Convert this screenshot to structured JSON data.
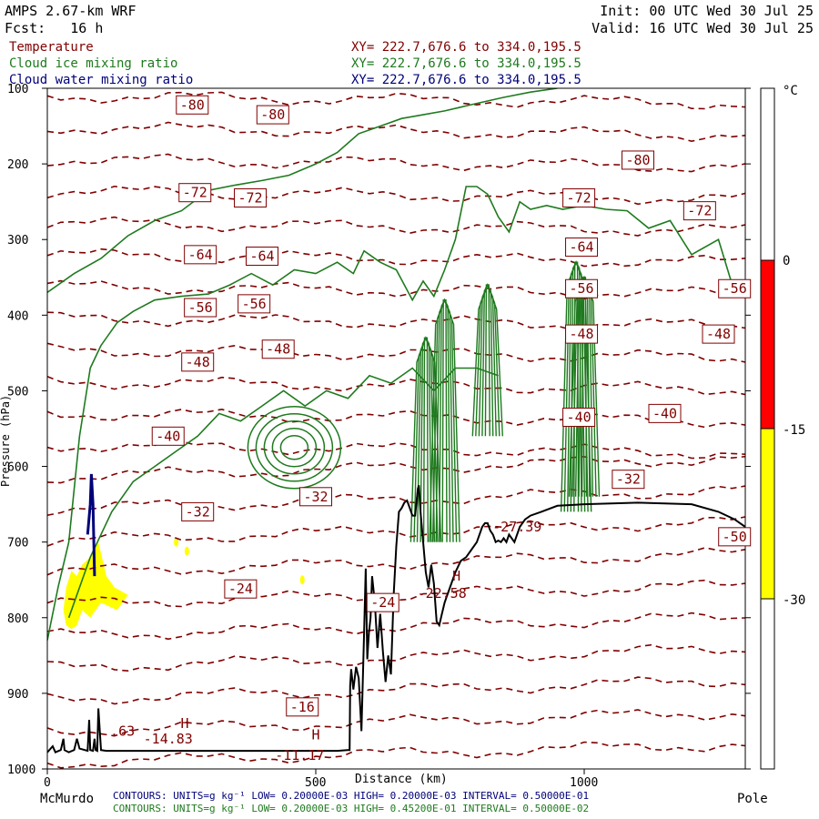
{
  "header": {
    "model": "AMPS 2.67-km WRF",
    "init": "Init: 00 UTC Wed 30 Jul 25",
    "fcst": "Fcst:   16 h",
    "valid": "Valid: 16 UTC Wed 30 Jul 25"
  },
  "fields": [
    {
      "name": "Temperature",
      "xy": "XY= 222.7,676.6 to 334.0,195.5",
      "color": "#800000"
    },
    {
      "name": "Cloud ice mixing ratio",
      "xy": "XY= 222.7,676.6 to 334.0,195.5",
      "color": "#1e7a1e"
    },
    {
      "name": "Cloud water mixing ratio",
      "xy": "XY= 222.7,676.6 to 334.0,195.5",
      "color": "#00007a"
    }
  ],
  "footer": {
    "left_location": "McMurdo",
    "right_location": "Pole",
    "contour_water": "CONTOURS:  UNITS=g kg⁻¹  LOW= 0.20000E-03  HIGH= 0.20000E-03  INTERVAL=  0.50000E-01",
    "contour_ice": "CONTOURS:  UNITS=g kg⁻¹  LOW= 0.20000E-03  HIGH= 0.45200E-01  INTERVAL=  0.50000E-02"
  },
  "colorbar": {
    "unit": "°C",
    "labels": [
      "0",
      "-15",
      "-30"
    ],
    "colors": {
      "above0": "#ffffff",
      "0_to_-15": "#ff0000",
      "-15_to_-30": "#ffff00",
      "below-30": "#ffffff"
    }
  },
  "chart_data": {
    "type": "contour cross-section",
    "xlabel": "Distance (km)",
    "ylabel": "Pressure (hPa)",
    "x_ticks": [
      0,
      500,
      1000
    ],
    "y_ticks": [
      100,
      200,
      300,
      400,
      500,
      600,
      700,
      800,
      900,
      1000
    ],
    "xlim": [
      0,
      1300
    ],
    "ylim": [
      1000,
      100
    ],
    "temperature_labels": [
      {
        "text": "-80",
        "x": 270,
        "p": 122
      },
      {
        "text": "-80",
        "x": 420,
        "p": 135
      },
      {
        "text": "-80",
        "x": 1100,
        "p": 195
      },
      {
        "text": "-72",
        "x": 275,
        "p": 238
      },
      {
        "text": "-72",
        "x": 378,
        "p": 245
      },
      {
        "text": "-72",
        "x": 990,
        "p": 245
      },
      {
        "text": "-72",
        "x": 1215,
        "p": 262
      },
      {
        "text": "-64",
        "x": 285,
        "p": 320
      },
      {
        "text": "-64",
        "x": 400,
        "p": 322
      },
      {
        "text": "-64",
        "x": 995,
        "p": 310
      },
      {
        "text": "-56",
        "x": 285,
        "p": 390
      },
      {
        "text": "-56",
        "x": 385,
        "p": 385
      },
      {
        "text": "-56",
        "x": 995,
        "p": 365
      },
      {
        "text": "-56",
        "x": 1280,
        "p": 365
      },
      {
        "text": "-48",
        "x": 280,
        "p": 462
      },
      {
        "text": "-48",
        "x": 430,
        "p": 445
      },
      {
        "text": "-48",
        "x": 995,
        "p": 425
      },
      {
        "text": "-48",
        "x": 1250,
        "p": 425
      },
      {
        "text": "-40",
        "x": 225,
        "p": 560
      },
      {
        "text": "-40",
        "x": 990,
        "p": 535
      },
      {
        "text": "-40",
        "x": 1150,
        "p": 530
      },
      {
        "text": "-32",
        "x": 280,
        "p": 660
      },
      {
        "text": "-32",
        "x": 500,
        "p": 640
      },
      {
        "text": "-32",
        "x": 1082,
        "p": 617
      },
      {
        "text": "-24",
        "x": 360,
        "p": 762
      },
      {
        "text": "-24",
        "x": 625,
        "p": 780
      },
      {
        "text": "-16",
        "x": 475,
        "p": 918
      },
      {
        "text": "-27.39",
        "x": 875,
        "p": 680
      },
      {
        "text": "-22.58",
        "x": 735,
        "p": 768
      },
      {
        "text": "-14.83",
        "x": 225,
        "p": 960
      },
      {
        "text": "-11.17",
        "x": 470,
        "p": 982
      },
      {
        "text": ".63",
        "x": 140,
        "p": 950
      },
      {
        "text": "-50",
        "x": 1280,
        "p": 693
      }
    ],
    "highs": [
      {
        "text": "H",
        "x": 762,
        "p": 745
      },
      {
        "text": "H",
        "x": 256,
        "p": 940
      },
      {
        "text": "H",
        "x": 500,
        "p": 955
      }
    ],
    "terrain": [
      [
        0,
        978
      ],
      [
        10,
        970
      ],
      [
        15,
        978
      ],
      [
        25,
        975
      ],
      [
        30,
        960
      ],
      [
        32,
        975
      ],
      [
        40,
        978
      ],
      [
        50,
        975
      ],
      [
        55,
        960
      ],
      [
        60,
        973
      ],
      [
        75,
        976
      ],
      [
        78,
        935
      ],
      [
        80,
        975
      ],
      [
        85,
        976
      ],
      [
        88,
        960
      ],
      [
        90,
        975
      ],
      [
        93,
        976
      ],
      [
        95,
        920
      ],
      [
        100,
        975
      ],
      [
        110,
        976
      ],
      [
        300,
        976
      ],
      [
        500,
        976
      ],
      [
        540,
        976
      ],
      [
        560,
        975
      ],
      [
        563,
        975
      ],
      [
        564,
        890
      ],
      [
        566,
        868
      ],
      [
        570,
        895
      ],
      [
        575,
        865
      ],
      [
        580,
        880
      ],
      [
        585,
        950
      ],
      [
        590,
        820
      ],
      [
        593,
        735
      ],
      [
        596,
        855
      ],
      [
        599,
        820
      ],
      [
        602,
        800
      ],
      [
        605,
        745
      ],
      [
        610,
        780
      ],
      [
        615,
        840
      ],
      [
        620,
        795
      ],
      [
        625,
        845
      ],
      [
        630,
        885
      ],
      [
        635,
        850
      ],
      [
        640,
        875
      ],
      [
        645,
        770
      ],
      [
        650,
        705
      ],
      [
        655,
        660
      ],
      [
        660,
        655
      ],
      [
        665,
        648
      ],
      [
        670,
        645
      ],
      [
        675,
        655
      ],
      [
        680,
        665
      ],
      [
        685,
        665
      ],
      [
        690,
        630
      ],
      [
        692,
        625
      ],
      [
        695,
        660
      ],
      [
        700,
        700
      ],
      [
        705,
        740
      ],
      [
        710,
        760
      ],
      [
        715,
        730
      ],
      [
        720,
        755
      ],
      [
        725,
        805
      ],
      [
        730,
        810
      ],
      [
        735,
        795
      ],
      [
        740,
        780
      ],
      [
        745,
        770
      ],
      [
        750,
        760
      ],
      [
        760,
        740
      ],
      [
        770,
        725
      ],
      [
        780,
        720
      ],
      [
        790,
        710
      ],
      [
        800,
        700
      ],
      [
        810,
        680
      ],
      [
        815,
        675
      ],
      [
        820,
        675
      ],
      [
        825,
        685
      ],
      [
        830,
        690
      ],
      [
        835,
        700
      ],
      [
        840,
        698
      ],
      [
        845,
        700
      ],
      [
        850,
        695
      ],
      [
        855,
        700
      ],
      [
        860,
        690
      ],
      [
        870,
        700
      ],
      [
        880,
        680
      ],
      [
        890,
        670
      ],
      [
        900,
        665
      ],
      [
        920,
        660
      ],
      [
        950,
        652
      ],
      [
        1000,
        650
      ],
      [
        1100,
        648
      ],
      [
        1200,
        650
      ],
      [
        1250,
        660
      ],
      [
        1280,
        670
      ],
      [
        1300,
        680
      ]
    ],
    "ice_boundary": [
      [
        0,
        370
      ],
      [
        50,
        345
      ],
      [
        100,
        325
      ],
      [
        150,
        295
      ],
      [
        200,
        275
      ],
      [
        250,
        262
      ],
      [
        300,
        235
      ],
      [
        350,
        228
      ],
      [
        400,
        222
      ],
      [
        450,
        215
      ],
      [
        500,
        200
      ],
      [
        540,
        185
      ],
      [
        580,
        160
      ],
      [
        620,
        150
      ],
      [
        660,
        140
      ],
      [
        700,
        135
      ],
      [
        740,
        130
      ],
      [
        800,
        120
      ],
      [
        850,
        112
      ],
      [
        900,
        105
      ],
      [
        950,
        100
      ]
    ],
    "ice_outer": [
      [
        0,
        830
      ],
      [
        20,
        760
      ],
      [
        40,
        700
      ],
      [
        60,
        560
      ],
      [
        80,
        470
      ],
      [
        100,
        440
      ],
      [
        130,
        410
      ],
      [
        160,
        395
      ],
      [
        200,
        380
      ],
      [
        250,
        375
      ],
      [
        300,
        372
      ],
      [
        340,
        360
      ],
      [
        380,
        345
      ],
      [
        420,
        360
      ],
      [
        460,
        340
      ],
      [
        500,
        345
      ],
      [
        540,
        330
      ],
      [
        570,
        345
      ],
      [
        590,
        315
      ],
      [
        620,
        330
      ],
      [
        650,
        340
      ],
      [
        680,
        380
      ],
      [
        700,
        355
      ],
      [
        720,
        375
      ],
      [
        740,
        340
      ],
      [
        760,
        300
      ],
      [
        780,
        230
      ],
      [
        800,
        230
      ],
      [
        820,
        240
      ],
      [
        840,
        270
      ],
      [
        860,
        290
      ],
      [
        880,
        250
      ],
      [
        900,
        260
      ],
      [
        930,
        255
      ],
      [
        960,
        260
      ],
      [
        1000,
        255
      ],
      [
        1040,
        260
      ],
      [
        1080,
        262
      ],
      [
        1120,
        285
      ],
      [
        1160,
        275
      ],
      [
        1200,
        320
      ],
      [
        1250,
        300
      ],
      [
        1280,
        370
      ],
      [
        1300,
        360
      ]
    ],
    "ice_inner": [
      [
        40,
        800
      ],
      [
        80,
        720
      ],
      [
        120,
        660
      ],
      [
        160,
        620
      ],
      [
        200,
        600
      ],
      [
        240,
        580
      ],
      [
        280,
        560
      ],
      [
        320,
        530
      ],
      [
        360,
        540
      ],
      [
        400,
        520
      ],
      [
        440,
        500
      ],
      [
        480,
        520
      ],
      [
        520,
        500
      ],
      [
        560,
        510
      ],
      [
        600,
        480
      ],
      [
        640,
        490
      ],
      [
        680,
        470
      ],
      [
        720,
        500
      ],
      [
        760,
        470
      ],
      [
        800,
        470
      ],
      [
        840,
        480
      ]
    ],
    "water_streak": [
      [
        75,
        690
      ],
      [
        80,
        650
      ],
      [
        82,
        610
      ],
      [
        85,
        650
      ],
      [
        88,
        745
      ]
    ],
    "yellow_patch": [
      [
        30,
        790
      ],
      [
        35,
        760
      ],
      [
        45,
        738
      ],
      [
        55,
        745
      ],
      [
        65,
        730
      ],
      [
        80,
        720
      ],
      [
        95,
        700
      ],
      [
        110,
        745
      ],
      [
        125,
        760
      ],
      [
        150,
        770
      ],
      [
        160,
        760
      ],
      [
        130,
        790
      ],
      [
        100,
        780
      ],
      [
        80,
        800
      ],
      [
        65,
        790
      ],
      [
        55,
        810
      ],
      [
        45,
        815
      ],
      [
        35,
        810
      ]
    ],
    "yellow_dots": [
      [
        240,
        700
      ],
      [
        260,
        712
      ],
      [
        475,
        750
      ]
    ]
  }
}
